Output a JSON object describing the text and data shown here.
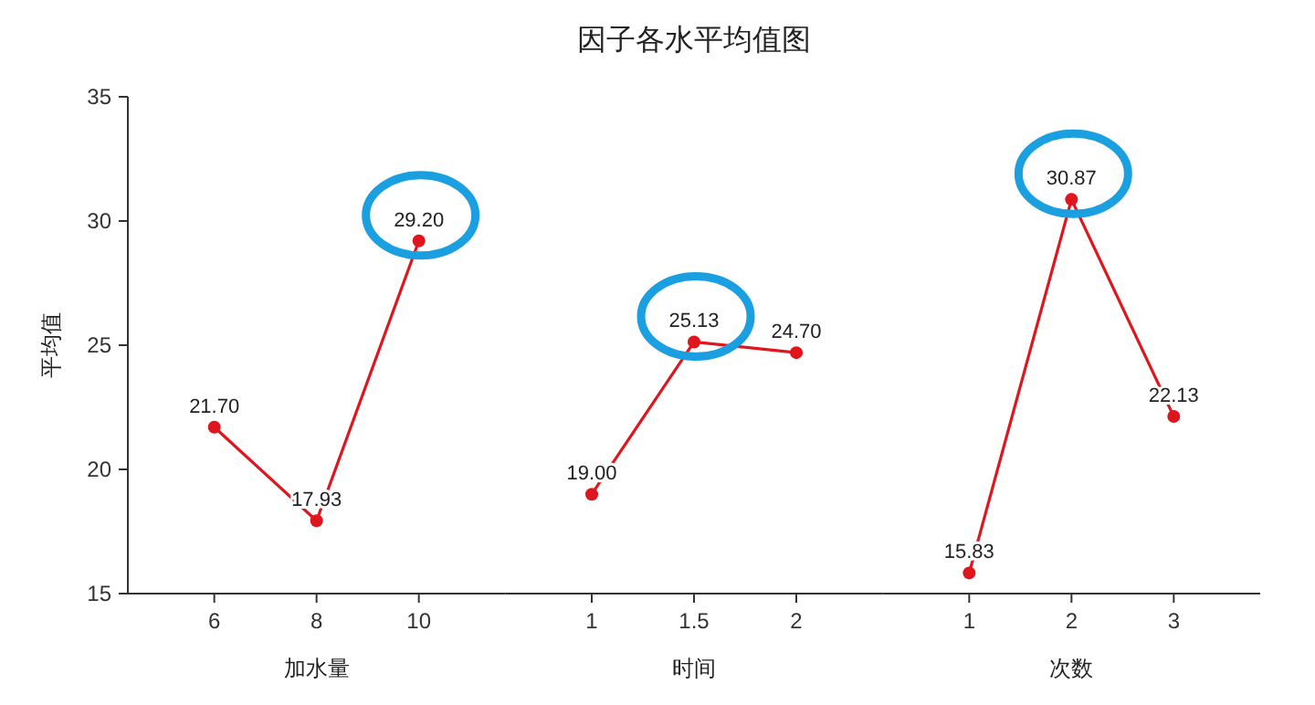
{
  "chart_data": [
    {
      "type": "line",
      "ylabel": "平均值",
      "xlabel": "加水量",
      "categories": [
        "6",
        "8",
        "10"
      ],
      "ylim": [
        15,
        35
      ],
      "yticks": [
        15,
        20,
        25,
        30,
        35
      ],
      "marker": "circle",
      "grid": false,
      "series": [
        {
          "color": "#e0161e",
          "values": [
            21.7,
            17.93,
            29.2
          ],
          "value_labels": [
            "21.70",
            "17.93",
            "29.20"
          ]
        }
      ]
    },
    {
      "type": "line",
      "title": "因子各水平均值图",
      "xlabel": "时间",
      "categories": [
        "1",
        "1.5",
        "2"
      ],
      "ylim": [
        15,
        35
      ],
      "tick_labels": "x",
      "marker": "circle",
      "grid": false,
      "series": [
        {
          "color": "#e0161e",
          "values": [
            19.0,
            25.13,
            24.7
          ],
          "value_labels": [
            "19.00",
            "25.13",
            "24.70"
          ]
        }
      ]
    },
    {
      "type": "line",
      "xlabel": "次数",
      "categories": [
        "1",
        "2",
        "3"
      ],
      "ylim": [
        15,
        35
      ],
      "tick_labels": "x",
      "marker": "circle",
      "grid": false,
      "series": [
        {
          "color": "#e0161e",
          "values": [
            15.83,
            30.87,
            22.13
          ],
          "value_labels": [
            "15.83",
            "30.87",
            "22.13"
          ]
        }
      ]
    }
  ]
}
